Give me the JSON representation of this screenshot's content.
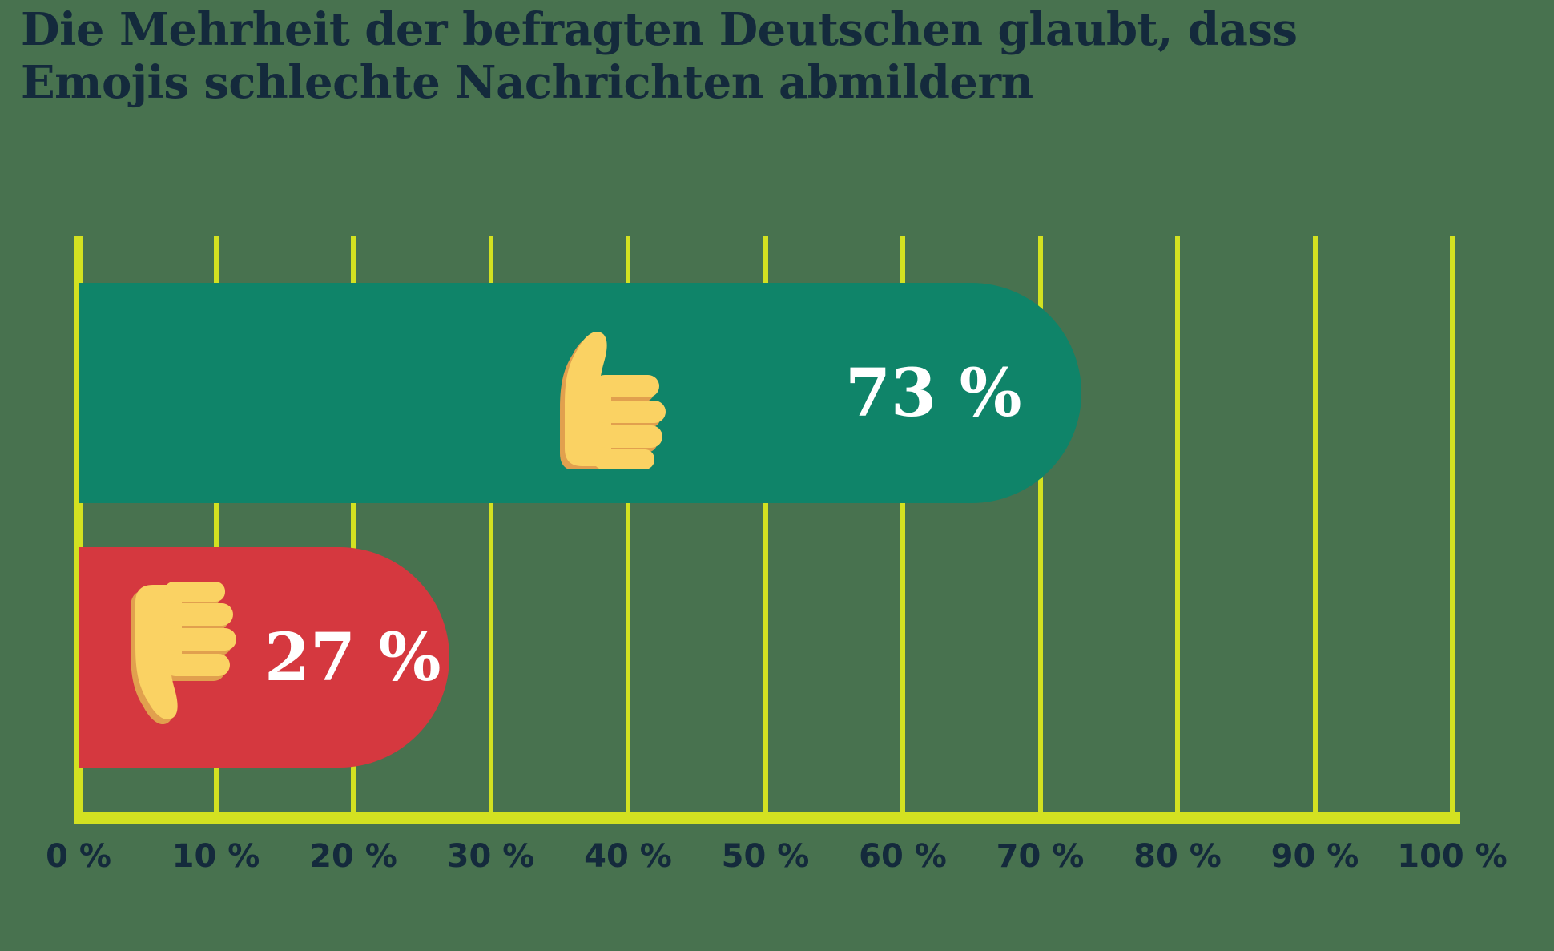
{
  "title": {
    "lines": [
      "Die Mehrheit der befragten Deutschen glaubt, dass",
      "Emojis schlechte Nachrichten abmildern"
    ]
  },
  "colors": {
    "background": "#48724F",
    "grid_yellow": "#D3E121",
    "bar_positive": "#0F8469",
    "bar_negative": "#D5383F",
    "text_navy": "#142A3C",
    "value_text": "#FFFFFF",
    "emoji_yellow": "#FAD263",
    "emoji_shadow_orange": "#E1A04E"
  },
  "chart_data": {
    "type": "bar",
    "orientation": "horizontal",
    "title": "Die Mehrheit der befragten Deutschen glaubt, dass Emojis schlechte Nachrichten abmildern",
    "categories": [
      "thumbs-up",
      "thumbs-down"
    ],
    "values": [
      73,
      27
    ],
    "value_labels": [
      "73 %",
      "27 %"
    ],
    "bar_colors": [
      "#0F8469",
      "#D5383F"
    ],
    "bar_icons": [
      "thumbs-up-emoji",
      "thumbs-down-emoji"
    ],
    "xlabel": "",
    "ylabel": "",
    "xlim": [
      0,
      100
    ],
    "x_ticks": [
      0,
      10,
      20,
      30,
      40,
      50,
      60,
      70,
      80,
      90,
      100
    ],
    "x_tick_labels": [
      "0 %",
      "10 %",
      "20 %",
      "30 %",
      "40 %",
      "50 %",
      "60 %",
      "70 %",
      "80 %",
      "90 %",
      "100 %"
    ],
    "grid": "vertical",
    "legend": "none"
  }
}
